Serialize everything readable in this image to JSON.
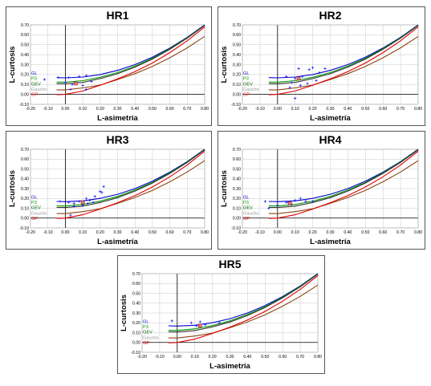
{
  "chart_data": [
    {
      "type": "line",
      "title": "HR1",
      "xlabel": "L-asimetría",
      "ylabel": "L-curtosis",
      "xlim": [
        -0.2,
        0.8
      ],
      "ylim": [
        -0.1,
        0.7
      ],
      "xticks": [
        "-0.20",
        "-0.10",
        "0.00",
        "0.10",
        "0.20",
        "0.30",
        "0.40",
        "0.50",
        "0.60",
        "0.70",
        "0.80"
      ],
      "yticks": [
        "-0.10",
        "0.00",
        "0.10",
        "0.20",
        "0.30",
        "0.40",
        "0.50",
        "0.60",
        "0.70"
      ],
      "grid": true,
      "legend": [
        "GL",
        "P3",
        "GEV",
        "Gaucho",
        "GP"
      ],
      "series": [
        {
          "name": "GL",
          "color": "#0000cc",
          "x": [
            -0.05,
            0.0,
            0.1,
            0.2,
            0.3,
            0.4,
            0.5,
            0.6,
            0.7,
            0.8
          ],
          "y": [
            0.169,
            0.167,
            0.175,
            0.2,
            0.242,
            0.3,
            0.375,
            0.467,
            0.575,
            0.7
          ]
        },
        {
          "name": "P3",
          "color": "#009900",
          "x": [
            -0.05,
            0.0,
            0.1,
            0.2,
            0.3,
            0.4,
            0.5,
            0.6,
            0.7,
            0.8
          ],
          "y": [
            0.124,
            0.123,
            0.138,
            0.172,
            0.22,
            0.285,
            0.364,
            0.461,
            0.571,
            0.697
          ]
        },
        {
          "name": "GEV",
          "color": "#333333",
          "x": [
            -0.05,
            0.0,
            0.1,
            0.2,
            0.3,
            0.4,
            0.5,
            0.6,
            0.7,
            0.8
          ],
          "y": [
            0.108,
            0.107,
            0.121,
            0.159,
            0.208,
            0.275,
            0.356,
            0.454,
            0.566,
            0.694
          ]
        },
        {
          "name": "Gaucho",
          "color": "#8b4513",
          "x": [
            -0.05,
            0.0,
            0.1,
            0.2,
            0.3,
            0.4,
            0.5,
            0.6,
            0.7,
            0.8
          ],
          "y": [
            0.046,
            0.045,
            0.066,
            0.094,
            0.15,
            0.209,
            0.282,
            0.369,
            0.469,
            0.584
          ]
        },
        {
          "name": "GP",
          "color": "#dd0000",
          "x": [
            -0.05,
            0.0,
            0.1,
            0.2,
            0.3,
            0.4,
            0.5,
            0.6,
            0.7,
            0.8
          ],
          "y": [
            -0.004,
            0.0,
            0.034,
            0.092,
            0.156,
            0.229,
            0.316,
            0.42,
            0.54,
            0.68
          ]
        }
      ],
      "points": [
        [
          -0.12,
          0.15
        ],
        [
          -0.04,
          0.17
        ],
        [
          0.02,
          0.17
        ],
        [
          0.08,
          0.18
        ],
        [
          0.12,
          0.19
        ],
        [
          0.0,
          0.12
        ],
        [
          0.04,
          0.1
        ],
        [
          0.06,
          0.12
        ],
        [
          0.1,
          0.09
        ],
        [
          0.15,
          0.13
        ],
        [
          0.03,
          0.05
        ],
        [
          0.12,
          0.05
        ]
      ],
      "regional_point": [
        0.06,
        0.11
      ]
    },
    {
      "type": "line",
      "title": "HR2",
      "xlabel": "L-asimetría",
      "ylabel": "L-curtosis",
      "xlim": [
        -0.2,
        0.8
      ],
      "ylim": [
        -0.1,
        0.7
      ],
      "xticks": [
        "-0.20",
        "-0.10",
        "0.00",
        "0.10",
        "0.20",
        "0.30",
        "0.40",
        "0.50",
        "0.60",
        "0.70",
        "0.80"
      ],
      "yticks": [
        "-0.10",
        "0.00",
        "0.10",
        "0.20",
        "0.30",
        "0.40",
        "0.50",
        "0.60",
        "0.70"
      ],
      "grid": true,
      "legend": [
        "GL",
        "P3",
        "GEV",
        "Gaucho",
        "GP"
      ],
      "series": [
        {
          "name": "GL",
          "color": "#0000cc",
          "x": [
            -0.05,
            0.0,
            0.1,
            0.2,
            0.3,
            0.4,
            0.5,
            0.6,
            0.7,
            0.8
          ],
          "y": [
            0.169,
            0.167,
            0.175,
            0.2,
            0.242,
            0.3,
            0.375,
            0.467,
            0.575,
            0.7
          ]
        },
        {
          "name": "P3",
          "color": "#009900",
          "x": [
            -0.05,
            0.0,
            0.1,
            0.2,
            0.3,
            0.4,
            0.5,
            0.6,
            0.7,
            0.8
          ],
          "y": [
            0.124,
            0.123,
            0.138,
            0.172,
            0.22,
            0.285,
            0.364,
            0.461,
            0.571,
            0.697
          ]
        },
        {
          "name": "GEV",
          "color": "#333333",
          "x": [
            -0.05,
            0.0,
            0.1,
            0.2,
            0.3,
            0.4,
            0.5,
            0.6,
            0.7,
            0.8
          ],
          "y": [
            0.108,
            0.107,
            0.121,
            0.159,
            0.208,
            0.275,
            0.356,
            0.454,
            0.566,
            0.694
          ]
        },
        {
          "name": "Gaucho",
          "color": "#8b4513",
          "x": [
            -0.05,
            0.0,
            0.1,
            0.2,
            0.3,
            0.4,
            0.5,
            0.6,
            0.7,
            0.8
          ],
          "y": [
            0.046,
            0.045,
            0.066,
            0.094,
            0.15,
            0.209,
            0.282,
            0.369,
            0.469,
            0.584
          ]
        },
        {
          "name": "GP",
          "color": "#dd0000",
          "x": [
            -0.05,
            0.0,
            0.1,
            0.2,
            0.3,
            0.4,
            0.5,
            0.6,
            0.7,
            0.8
          ],
          "y": [
            -0.004,
            0.0,
            0.034,
            0.092,
            0.156,
            0.229,
            0.316,
            0.42,
            0.54,
            0.68
          ]
        }
      ],
      "points": [
        [
          0.05,
          0.18
        ],
        [
          0.1,
          0.16
        ],
        [
          0.12,
          0.26
        ],
        [
          0.18,
          0.25
        ],
        [
          0.2,
          0.27
        ],
        [
          0.24,
          0.22
        ],
        [
          0.27,
          0.26
        ],
        [
          0.08,
          0.12
        ],
        [
          0.14,
          0.18
        ],
        [
          0.17,
          0.11
        ],
        [
          0.22,
          0.14
        ],
        [
          0.07,
          0.07
        ],
        [
          0.1,
          -0.04
        ],
        [
          0.13,
          0.09
        ]
      ],
      "regional_point": [
        0.12,
        0.16
      ]
    },
    {
      "type": "line",
      "title": "HR3",
      "xlabel": "L-asimetría",
      "ylabel": "L-curtosis",
      "xlim": [
        -0.2,
        0.8
      ],
      "ylim": [
        -0.1,
        0.7
      ],
      "xticks": [
        "-0.20",
        "-0.10",
        "0.00",
        "0.10",
        "0.20",
        "0.30",
        "0.40",
        "0.50",
        "0.60",
        "0.70",
        "0.80"
      ],
      "yticks": [
        "-0.10",
        "0.00",
        "0.10",
        "0.20",
        "0.30",
        "0.40",
        "0.50",
        "0.60",
        "0.70"
      ],
      "grid": true,
      "legend": [
        "GL",
        "P3",
        "GEV",
        "Gaucho",
        "GP"
      ],
      "series": [
        {
          "name": "GL",
          "color": "#0000cc",
          "x": [
            -0.05,
            0.0,
            0.1,
            0.2,
            0.3,
            0.4,
            0.5,
            0.6,
            0.7,
            0.8
          ],
          "y": [
            0.169,
            0.167,
            0.175,
            0.2,
            0.242,
            0.3,
            0.375,
            0.467,
            0.575,
            0.7
          ]
        },
        {
          "name": "P3",
          "color": "#009900",
          "x": [
            -0.05,
            0.0,
            0.1,
            0.2,
            0.3,
            0.4,
            0.5,
            0.6,
            0.7,
            0.8
          ],
          "y": [
            0.124,
            0.123,
            0.138,
            0.172,
            0.22,
            0.285,
            0.364,
            0.461,
            0.571,
            0.697
          ]
        },
        {
          "name": "GEV",
          "color": "#333333",
          "x": [
            -0.05,
            0.0,
            0.1,
            0.2,
            0.3,
            0.4,
            0.5,
            0.6,
            0.7,
            0.8
          ],
          "y": [
            0.108,
            0.107,
            0.121,
            0.159,
            0.208,
            0.275,
            0.356,
            0.454,
            0.566,
            0.694
          ]
        },
        {
          "name": "Gaucho",
          "color": "#8b4513",
          "x": [
            -0.05,
            0.0,
            0.1,
            0.2,
            0.3,
            0.4,
            0.5,
            0.6,
            0.7,
            0.8
          ],
          "y": [
            0.046,
            0.045,
            0.066,
            0.094,
            0.15,
            0.209,
            0.282,
            0.369,
            0.469,
            0.584
          ]
        },
        {
          "name": "GP",
          "color": "#dd0000",
          "x": [
            -0.05,
            0.0,
            0.1,
            0.2,
            0.3,
            0.4,
            0.5,
            0.6,
            0.7,
            0.8
          ],
          "y": [
            -0.004,
            0.0,
            0.034,
            0.092,
            0.156,
            0.229,
            0.316,
            0.42,
            0.54,
            0.68
          ]
        }
      ],
      "points": [
        [
          -0.03,
          0.17
        ],
        [
          0.02,
          0.16
        ],
        [
          0.05,
          0.15
        ],
        [
          0.08,
          0.17
        ],
        [
          0.12,
          0.2
        ],
        [
          0.14,
          0.18
        ],
        [
          0.17,
          0.22
        ],
        [
          0.2,
          0.27
        ],
        [
          0.22,
          0.32
        ],
        [
          0.21,
          0.26
        ],
        [
          0.1,
          0.13
        ],
        [
          0.13,
          0.15
        ],
        [
          0.05,
          0.12
        ],
        [
          0.16,
          0.16
        ],
        [
          0.03,
          0.03
        ]
      ],
      "regional_point": [
        0.1,
        0.16
      ]
    },
    {
      "type": "line",
      "title": "HR4",
      "xlabel": "L-asimetría",
      "ylabel": "L-curtosis",
      "xlim": [
        -0.2,
        0.8
      ],
      "ylim": [
        -0.1,
        0.7
      ],
      "xticks": [
        "-0.20",
        "-0.10",
        "0.00",
        "0.10",
        "0.20",
        "0.30",
        "0.40",
        "0.50",
        "0.60",
        "0.70",
        "0.80"
      ],
      "yticks": [
        "-0.10",
        "0.00",
        "0.10",
        "0.20",
        "0.30",
        "0.40",
        "0.50",
        "0.60",
        "0.70"
      ],
      "grid": true,
      "legend": [
        "GL",
        "P3",
        "GEV",
        "Gaucho",
        "GP"
      ],
      "series": [
        {
          "name": "GL",
          "color": "#0000cc",
          "x": [
            -0.05,
            0.0,
            0.1,
            0.2,
            0.3,
            0.4,
            0.5,
            0.6,
            0.7,
            0.8
          ],
          "y": [
            0.169,
            0.167,
            0.175,
            0.2,
            0.242,
            0.3,
            0.375,
            0.467,
            0.575,
            0.7
          ]
        },
        {
          "name": "P3",
          "color": "#009900",
          "x": [
            -0.05,
            0.0,
            0.1,
            0.2,
            0.3,
            0.4,
            0.5,
            0.6,
            0.7,
            0.8
          ],
          "y": [
            0.124,
            0.123,
            0.138,
            0.172,
            0.22,
            0.285,
            0.364,
            0.461,
            0.571,
            0.697
          ]
        },
        {
          "name": "GEV",
          "color": "#333333",
          "x": [
            -0.05,
            0.0,
            0.1,
            0.2,
            0.3,
            0.4,
            0.5,
            0.6,
            0.7,
            0.8
          ],
          "y": [
            0.108,
            0.107,
            0.121,
            0.159,
            0.208,
            0.275,
            0.356,
            0.454,
            0.566,
            0.694
          ]
        },
        {
          "name": "Gaucho",
          "color": "#8b4513",
          "x": [
            -0.05,
            0.0,
            0.1,
            0.2,
            0.3,
            0.4,
            0.5,
            0.6,
            0.7,
            0.8
          ],
          "y": [
            0.046,
            0.045,
            0.066,
            0.094,
            0.15,
            0.209,
            0.282,
            0.369,
            0.469,
            0.584
          ]
        },
        {
          "name": "GP",
          "color": "#dd0000",
          "x": [
            -0.05,
            0.0,
            0.1,
            0.2,
            0.3,
            0.4,
            0.5,
            0.6,
            0.7,
            0.8
          ],
          "y": [
            -0.004,
            0.0,
            0.034,
            0.092,
            0.156,
            0.229,
            0.316,
            0.42,
            0.54,
            0.68
          ]
        }
      ],
      "points": [
        [
          -0.07,
          0.17
        ],
        [
          -0.05,
          0.1
        ],
        [
          0.0,
          0.13
        ],
        [
          0.05,
          0.16
        ],
        [
          0.1,
          0.18
        ],
        [
          0.13,
          0.2
        ],
        [
          0.08,
          0.14
        ],
        [
          0.16,
          0.17
        ],
        [
          0.2,
          0.17
        ],
        [
          0.06,
          0.16
        ]
      ],
      "regional_point": [
        0.07,
        0.15
      ]
    },
    {
      "type": "line",
      "title": "HR5",
      "xlabel": "L-asimetría",
      "ylabel": "L-curtosis",
      "xlim": [
        -0.2,
        0.8
      ],
      "ylim": [
        -0.1,
        0.7
      ],
      "xticks": [
        "-0.20",
        "-0.10",
        "0.00",
        "0.10",
        "0.20",
        "0.30",
        "0.40",
        "0.50",
        "0.60",
        "0.70",
        "0.80"
      ],
      "yticks": [
        "-0.10",
        "0.00",
        "0.10",
        "0.20",
        "0.30",
        "0.40",
        "0.50",
        "0.60",
        "0.70"
      ],
      "grid": true,
      "legend": [
        "GL",
        "P3",
        "GEV",
        "Gaucho",
        "GP"
      ],
      "series": [
        {
          "name": "GL",
          "color": "#0000cc",
          "x": [
            -0.05,
            0.0,
            0.1,
            0.2,
            0.3,
            0.4,
            0.5,
            0.6,
            0.7,
            0.8
          ],
          "y": [
            0.169,
            0.167,
            0.175,
            0.2,
            0.242,
            0.3,
            0.375,
            0.467,
            0.575,
            0.7
          ]
        },
        {
          "name": "P3",
          "color": "#009900",
          "x": [
            -0.05,
            0.0,
            0.1,
            0.2,
            0.3,
            0.4,
            0.5,
            0.6,
            0.7,
            0.8
          ],
          "y": [
            0.124,
            0.123,
            0.138,
            0.172,
            0.22,
            0.285,
            0.364,
            0.461,
            0.571,
            0.697
          ]
        },
        {
          "name": "GEV",
          "color": "#333333",
          "x": [
            -0.05,
            0.0,
            0.1,
            0.2,
            0.3,
            0.4,
            0.5,
            0.6,
            0.7,
            0.8
          ],
          "y": [
            0.108,
            0.107,
            0.121,
            0.159,
            0.208,
            0.275,
            0.356,
            0.454,
            0.566,
            0.694
          ]
        },
        {
          "name": "Gaucho",
          "color": "#8b4513",
          "x": [
            -0.05,
            0.0,
            0.1,
            0.2,
            0.3,
            0.4,
            0.5,
            0.6,
            0.7,
            0.8
          ],
          "y": [
            0.046,
            0.045,
            0.066,
            0.094,
            0.15,
            0.209,
            0.282,
            0.369,
            0.469,
            0.584
          ]
        },
        {
          "name": "GP",
          "color": "#dd0000",
          "x": [
            -0.05,
            0.0,
            0.1,
            0.2,
            0.3,
            0.4,
            0.5,
            0.6,
            0.7,
            0.8
          ],
          "y": [
            -0.004,
            0.0,
            0.034,
            0.092,
            0.156,
            0.229,
            0.316,
            0.42,
            0.54,
            0.68
          ]
        }
      ],
      "points": [
        [
          -0.03,
          0.22
        ],
        [
          0.08,
          0.2
        ],
        [
          0.13,
          0.21
        ],
        [
          0.11,
          0.17
        ],
        [
          0.16,
          0.18
        ],
        [
          0.24,
          0.2
        ]
      ],
      "regional_point": [
        0.13,
        0.17
      ]
    }
  ]
}
